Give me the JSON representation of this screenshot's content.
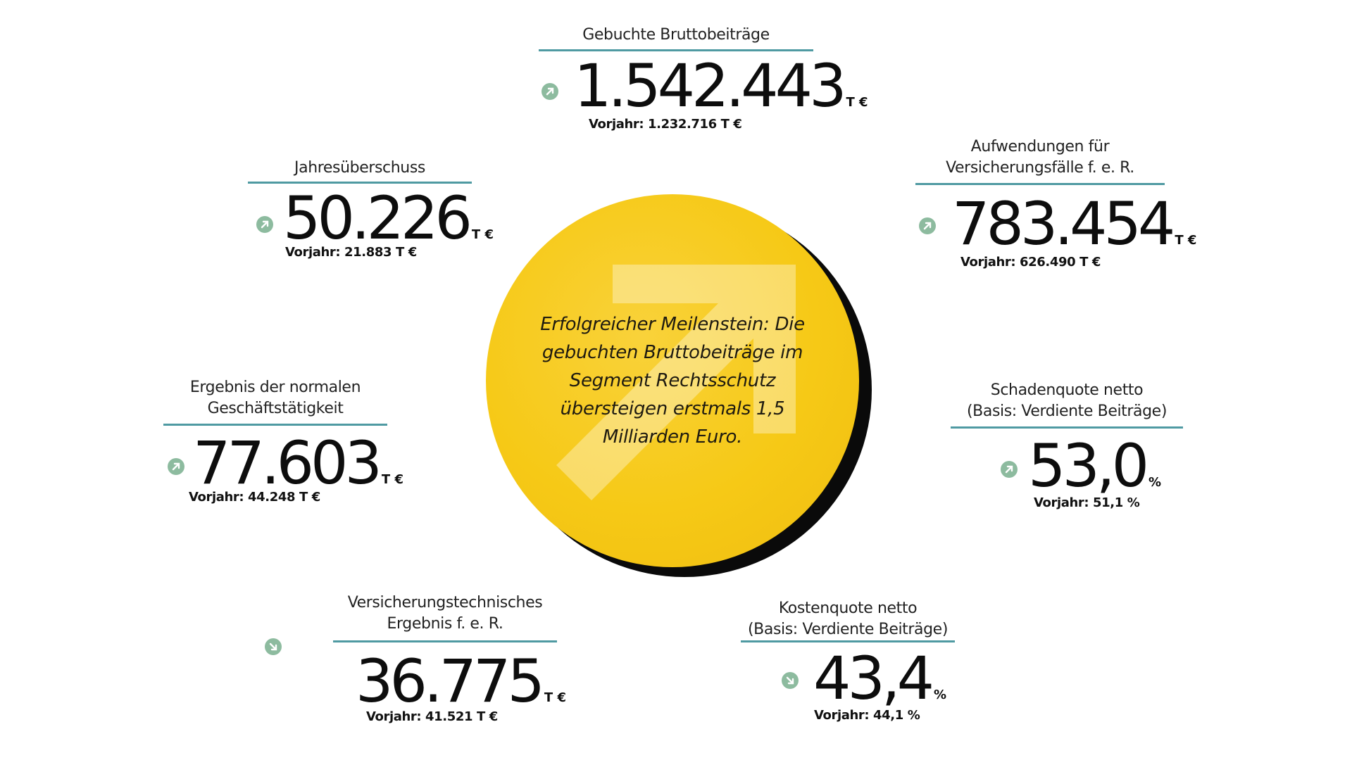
{
  "center": {
    "text_lines": [
      "Erfolgreicher Meilenstein: Die",
      "gebuchten Bruttobeiträge im",
      "Segment Rechtsschutz",
      "übersteigen erstmals 1,5",
      "Milliarden Euro."
    ],
    "background_color": "#f6c916",
    "shadow_color": "#0a0a0a",
    "icon": "arrow-up-right-icon"
  },
  "accent_color": "#4f9aa2",
  "trend_color": "#8dbb9f",
  "metrics": {
    "gross_premiums": {
      "title_1": "Gebuchte Bruttobeiträge",
      "value": "1.542.443",
      "unit": "T €",
      "previous": "Vorjahr: 1.232.716 T €",
      "trend": "up"
    },
    "annual_surplus": {
      "title_1": "Jahresüberschuss",
      "value": "50.226",
      "unit": "T €",
      "previous": "Vorjahr: 21.883 T €",
      "trend": "up"
    },
    "claims_expenses": {
      "title_1": "Aufwendungen für",
      "title_2": "Versicherungsfälle f. e. R.",
      "value": "783.454",
      "unit": "T €",
      "previous": "Vorjahr: 626.490 T €",
      "trend": "up"
    },
    "ordinary_result": {
      "title_1": "Ergebnis der normalen",
      "title_2": "Geschäftstätigkeit",
      "value": "77.603",
      "unit": "T €",
      "previous": "Vorjahr: 44.248 T €",
      "trend": "up"
    },
    "loss_ratio": {
      "title_1": "Schadenquote netto",
      "title_2": "(Basis: Verdiente Beiträge)",
      "value": "53,0",
      "unit": "%",
      "previous": "Vorjahr: 51,1 %",
      "trend": "up"
    },
    "technical_result": {
      "title_1": "Versicherungstechnisches",
      "title_2": "Ergebnis f. e. R.",
      "value": "36.775",
      "unit": "T €",
      "previous": "Vorjahr: 41.521 T €",
      "trend": "down"
    },
    "cost_ratio": {
      "title_1": "Kostenquote netto",
      "title_2": "(Basis: Verdiente Beiträge)",
      "value": "43,4",
      "unit": "%",
      "previous": "Vorjahr: 44,1 %",
      "trend": "down"
    }
  }
}
